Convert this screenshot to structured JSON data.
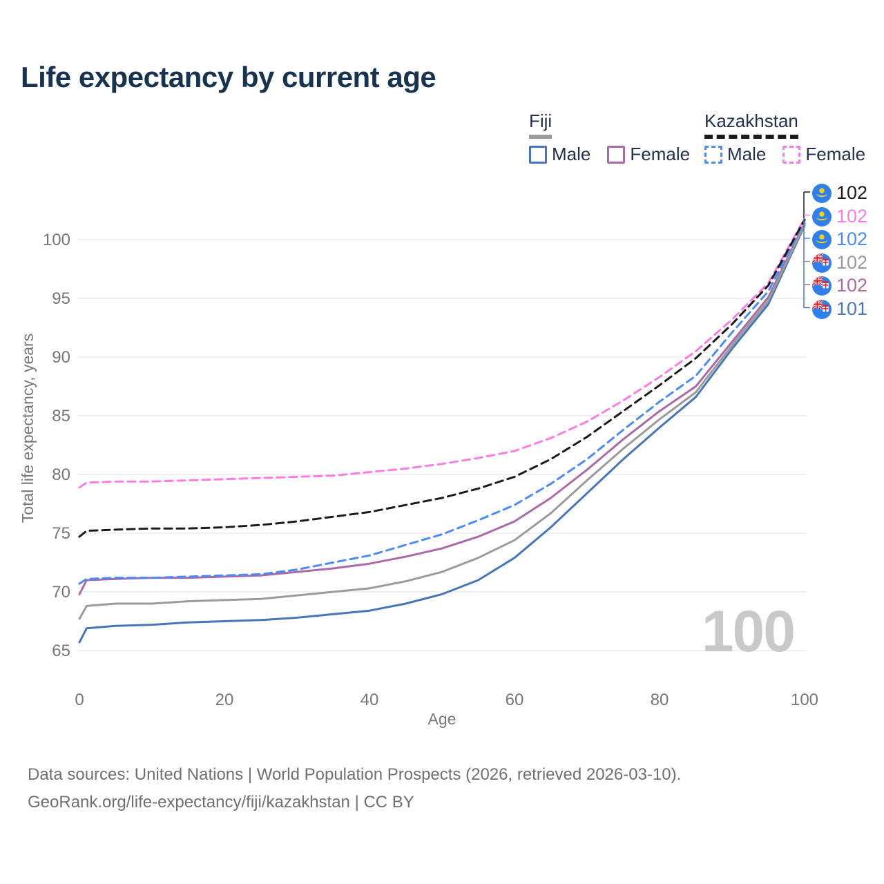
{
  "title": "Life expectancy by current age",
  "legend": {
    "groups": [
      {
        "label": "Fiji",
        "line_style": "solid",
        "underline_color": "#9b9b9b",
        "items": [
          {
            "label": "Male",
            "color": "#4676b5",
            "dash": false
          },
          {
            "label": "Female",
            "color": "#a86ba7",
            "dash": false
          }
        ]
      },
      {
        "label": "Kazakhstan",
        "line_style": "dashed",
        "underline_color": "#1b1b1b",
        "items": [
          {
            "label": "Male",
            "color": "#4c8bf5",
            "dash": true
          },
          {
            "label": "Female",
            "color": "#fb7de4",
            "dash": true
          }
        ]
      }
    ]
  },
  "annotations": [
    {
      "series": "Kazakhstan Total",
      "flag": "Kazakhstan",
      "value": "102",
      "color": "#1b1b1b"
    },
    {
      "series": "Kazakhstan Female",
      "flag": "Kazakhstan",
      "value": "102",
      "color": "#fb7de4"
    },
    {
      "series": "Kazakhstan Male",
      "flag": "Kazakhstan",
      "value": "102",
      "color": "#4c8bf5"
    },
    {
      "series": "Fiji Total",
      "flag": "Fiji",
      "value": "102",
      "color": "#9b9b9b"
    },
    {
      "series": "Fiji Female",
      "flag": "Fiji",
      "value": "102",
      "color": "#a86ba7"
    },
    {
      "series": "Fiji Male",
      "flag": "Fiji",
      "value": "101",
      "color": "#4c79b9"
    }
  ],
  "watermark": "100",
  "footer": {
    "line1": "Data sources: United Nations | World Population Prospects (2026, retrieved 2026-03-10).",
    "line2": "GeoRank.org/life-expectancy/fiji/kazakhstan | CC BY"
  },
  "chart_data": {
    "type": "line",
    "title": "Life expectancy by current age",
    "xlabel": "Age",
    "ylabel": "Total life expectancy, years",
    "xlim": [
      0,
      100
    ],
    "ylim": [
      65,
      102.5
    ],
    "xticks": [
      0,
      20,
      40,
      60,
      80,
      100
    ],
    "yticks": [
      65,
      70,
      75,
      80,
      85,
      90,
      95,
      100
    ],
    "grid": "horizontal",
    "legend_position": "top-right",
    "x": [
      0,
      1,
      5,
      10,
      15,
      20,
      25,
      30,
      35,
      40,
      45,
      50,
      55,
      60,
      65,
      70,
      75,
      80,
      85,
      90,
      95,
      100
    ],
    "series": [
      {
        "name": "Fiji Male",
        "country": "Fiji",
        "sex": "male",
        "color": "#4676b5",
        "dash": false,
        "values": [
          65.7,
          66.9,
          67.1,
          67.2,
          67.4,
          67.5,
          67.6,
          67.8,
          68.1,
          68.4,
          69.0,
          69.8,
          71.0,
          72.9,
          75.5,
          78.4,
          81.3,
          84.0,
          86.6,
          90.7,
          94.5,
          101.2
        ]
      },
      {
        "name": "Fiji Female",
        "country": "Fiji",
        "sex": "female",
        "color": "#a86ba7",
        "dash": false,
        "values": [
          69.8,
          71.0,
          71.1,
          71.2,
          71.2,
          71.3,
          71.4,
          71.7,
          72.0,
          72.4,
          73.0,
          73.7,
          74.7,
          76.0,
          78.0,
          80.4,
          83.0,
          85.4,
          87.5,
          91.3,
          95.1,
          101.4
        ]
      },
      {
        "name": "Fiji Total",
        "country": "Fiji",
        "sex": "both",
        "color": "#9b9b9b",
        "dash": false,
        "values": [
          67.7,
          68.8,
          69.0,
          69.0,
          69.2,
          69.3,
          69.4,
          69.7,
          70.0,
          70.3,
          70.9,
          71.7,
          72.9,
          74.4,
          76.7,
          79.5,
          82.2,
          84.7,
          87.0,
          91.0,
          94.8,
          101.3
        ]
      },
      {
        "name": "Kazakhstan Male",
        "country": "Kazakhstan",
        "sex": "male",
        "color": "#4c8bf5",
        "dash": true,
        "values": [
          70.7,
          71.1,
          71.2,
          71.2,
          71.3,
          71.4,
          71.5,
          71.9,
          72.5,
          73.1,
          74.0,
          74.9,
          76.1,
          77.4,
          79.2,
          81.3,
          83.8,
          86.2,
          88.4,
          92.1,
          95.6,
          101.6
        ]
      },
      {
        "name": "Kazakhstan Female",
        "country": "Kazakhstan",
        "sex": "female",
        "color": "#fb7de4",
        "dash": true,
        "values": [
          78.9,
          79.3,
          79.4,
          79.4,
          79.5,
          79.6,
          79.7,
          79.8,
          79.9,
          80.2,
          80.5,
          80.9,
          81.4,
          82.0,
          83.1,
          84.5,
          86.3,
          88.3,
          90.5,
          93.2,
          96.3,
          101.8
        ]
      },
      {
        "name": "Kazakhstan Total",
        "country": "Kazakhstan",
        "sex": "both",
        "color": "#1b1b1b",
        "dash": true,
        "values": [
          74.7,
          75.2,
          75.3,
          75.4,
          75.4,
          75.5,
          75.7,
          76.0,
          76.4,
          76.8,
          77.4,
          78.0,
          78.8,
          79.8,
          81.3,
          83.2,
          85.4,
          87.6,
          89.9,
          92.8,
          96.1,
          101.7
        ]
      }
    ]
  }
}
